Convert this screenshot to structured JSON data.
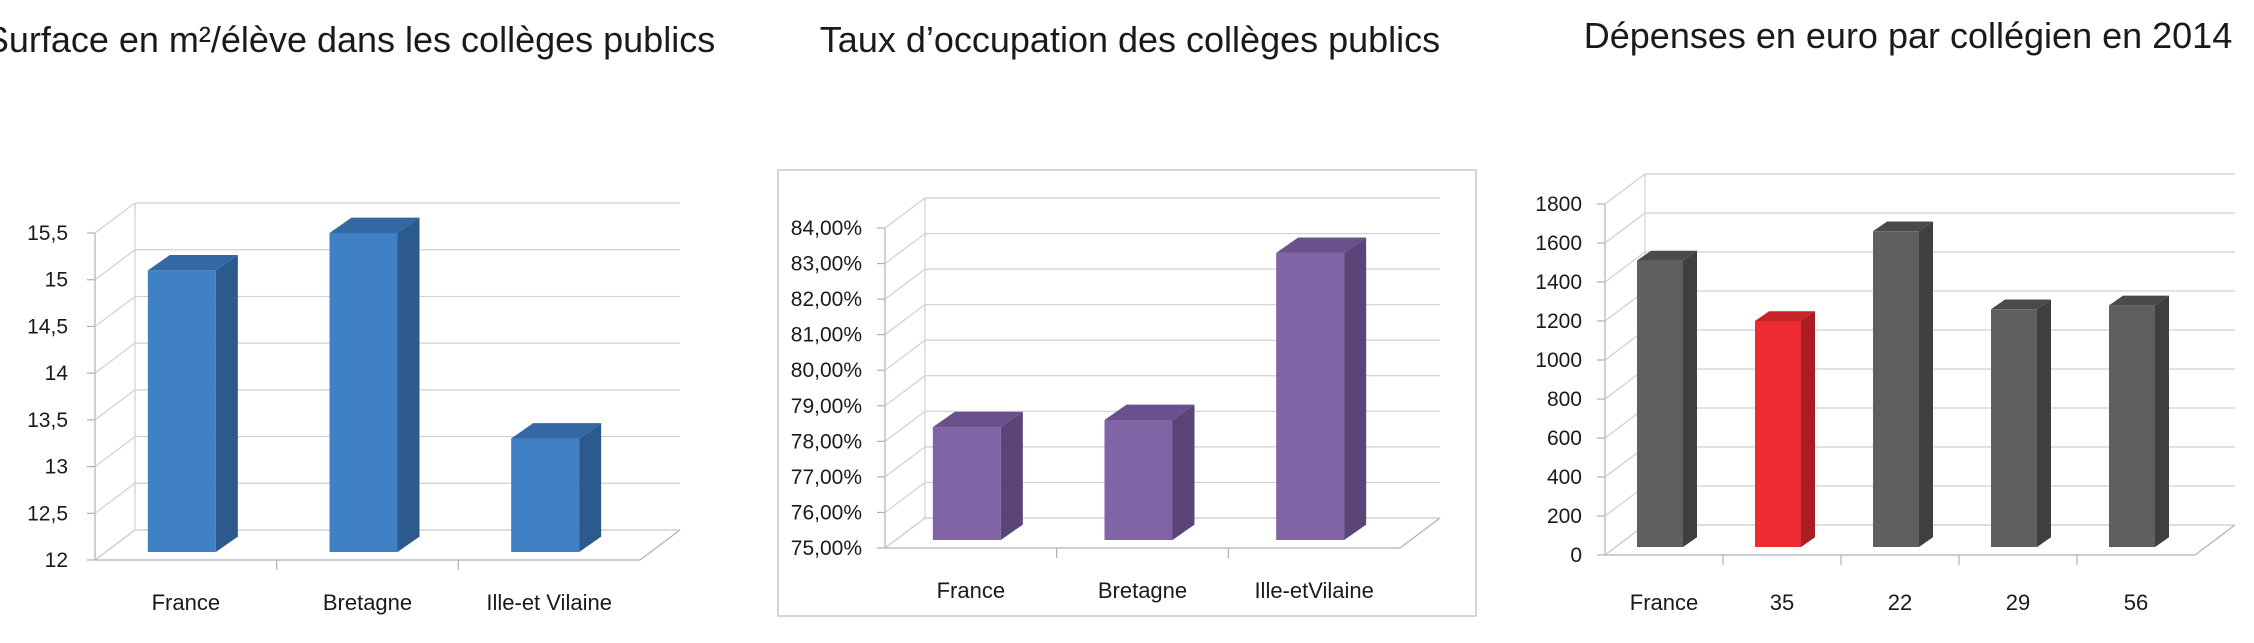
{
  "chart_data": [
    {
      "type": "bar",
      "title": "Surface en m²/élève dans les collèges publics",
      "categories": [
        "France",
        "Bretagne",
        "Ille-et Vilaine"
      ],
      "values": [
        15.1,
        15.5,
        13.3
      ],
      "yticks": [
        "12",
        "12,5",
        "13",
        "13,5",
        "14",
        "14,5",
        "15",
        "15,5"
      ],
      "ylim": [
        12,
        15.5
      ],
      "grid": true,
      "colors": {
        "front": "#4080c4",
        "side": "#2c5a8c",
        "top": "#3368a4"
      }
    },
    {
      "type": "bar",
      "title": "Taux d’occupation des collèges publics",
      "categories": [
        "France",
        "Bretagne",
        "Ille-etVilaine"
      ],
      "values": [
        78.4,
        78.6,
        83.3
      ],
      "yticks": [
        "75,00%",
        "76,00%",
        "77,00%",
        "78,00%",
        "79,00%",
        "80,00%",
        "81,00%",
        "82,00%",
        "83,00%",
        "84,00%"
      ],
      "ylim": [
        75,
        84
      ],
      "grid": true,
      "colors": {
        "front": "#8064a6",
        "side": "#5a4478",
        "top": "#6a508c"
      }
    },
    {
      "type": "bar",
      "title": "Dépenses en euro par collégien en 2014",
      "categories": [
        "France",
        "35",
        "22",
        "29",
        "56"
      ],
      "values": [
        1510,
        1200,
        1660,
        1260,
        1280
      ],
      "yticks": [
        "0",
        "200",
        "400",
        "600",
        "800",
        "1000",
        "1200",
        "1400",
        "1600",
        "1800"
      ],
      "ylim": [
        0,
        1800
      ],
      "grid": true,
      "colors": {
        "front": "#5f5f5f",
        "side": "#3f3f3f",
        "top": "#4a4a4a",
        "highlight_front": "#ee2a33",
        "highlight_side": "#a81c22",
        "highlight_top": "#c8222a"
      },
      "highlight_index": 1
    }
  ]
}
